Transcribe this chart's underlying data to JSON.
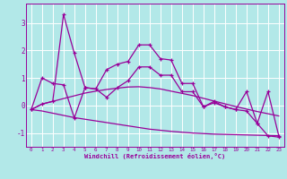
{
  "title": "Windchill (Refroidissement éolien,°C)",
  "bg_color": "#b2e8e8",
  "line_color": "#990099",
  "grid_color": "#ffffff",
  "x_values": [
    0,
    1,
    2,
    3,
    4,
    5,
    6,
    7,
    8,
    9,
    10,
    11,
    12,
    13,
    14,
    15,
    16,
    17,
    18,
    19,
    20,
    21,
    22,
    23
  ],
  "main_line_y": [
    -0.15,
    0.05,
    0.15,
    3.3,
    1.9,
    0.65,
    0.6,
    1.3,
    1.5,
    1.6,
    2.2,
    2.2,
    1.7,
    1.65,
    0.8,
    0.8,
    -0.05,
    0.15,
    -0.05,
    -0.15,
    0.5,
    -0.65,
    -1.1,
    -1.15
  ],
  "trend_up_y": [
    -0.15,
    0.05,
    0.15,
    0.25,
    0.35,
    0.45,
    0.52,
    0.58,
    0.63,
    0.67,
    0.68,
    0.65,
    0.6,
    0.52,
    0.44,
    0.36,
    0.26,
    0.16,
    0.06,
    -0.04,
    -0.13,
    -0.22,
    -0.3,
    -0.38
  ],
  "trend_down_y": [
    -0.15,
    -0.2,
    -0.28,
    -0.36,
    -0.44,
    -0.5,
    -0.56,
    -0.62,
    -0.68,
    -0.74,
    -0.8,
    -0.86,
    -0.9,
    -0.94,
    -0.97,
    -1.0,
    -1.02,
    -1.04,
    -1.05,
    -1.06,
    -1.07,
    -1.08,
    -1.09,
    -1.1
  ],
  "second_line_y": [
    -0.15,
    1.0,
    0.8,
    0.75,
    -0.45,
    0.65,
    0.6,
    0.3,
    0.65,
    0.9,
    1.4,
    1.4,
    1.1,
    1.1,
    0.5,
    0.5,
    -0.05,
    0.1,
    -0.05,
    -0.15,
    -0.2,
    -0.65,
    0.5,
    -1.1
  ],
  "ylim": [
    -1.5,
    3.7
  ],
  "yticks": [
    -1,
    0,
    1,
    2,
    3
  ],
  "xlim": [
    -0.5,
    23.5
  ],
  "xticks": [
    0,
    1,
    2,
    3,
    4,
    5,
    6,
    7,
    8,
    9,
    10,
    11,
    12,
    13,
    14,
    15,
    16,
    17,
    18,
    19,
    20,
    21,
    22,
    23
  ],
  "figsize": [
    3.2,
    2.0
  ],
  "dpi": 100
}
